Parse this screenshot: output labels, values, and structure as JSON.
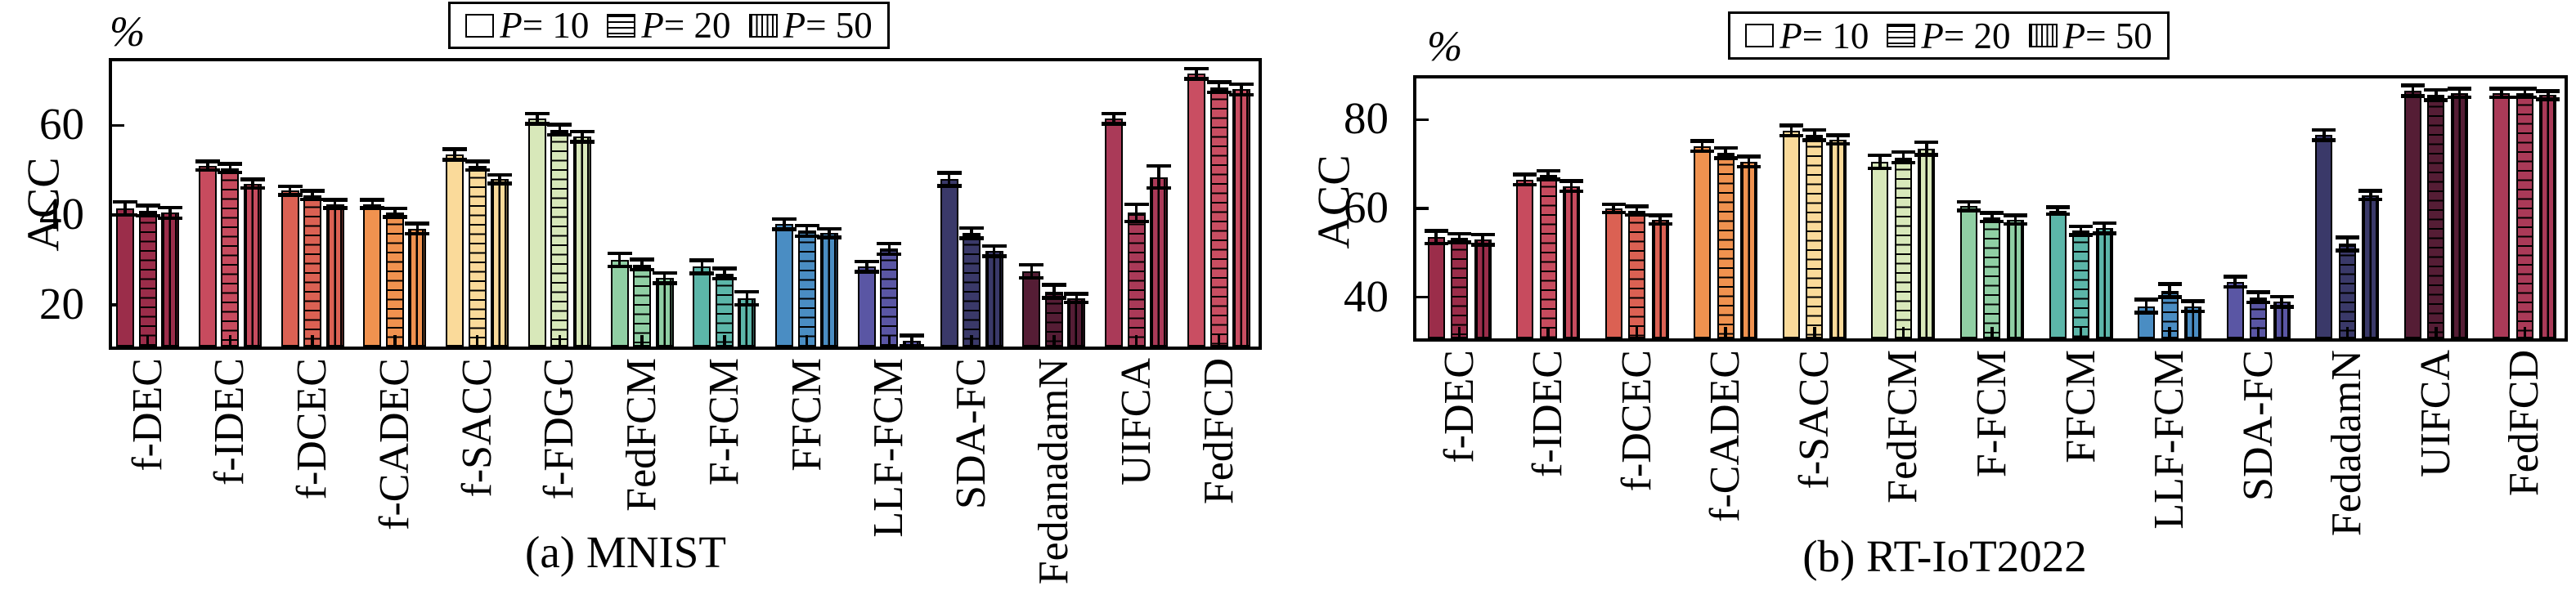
{
  "figure": {
    "background": "#ffffff",
    "axis_color": "#000000",
    "error_bar_color": "#000000"
  },
  "legend": {
    "entries": [
      {
        "var": "P",
        "rest": " = 10",
        "label": "P = 10",
        "hatch": "none"
      },
      {
        "var": "P",
        "rest": " = 20",
        "label": "P = 20",
        "hatch": "horizontal"
      },
      {
        "var": "P",
        "rest": " = 50",
        "label": "P = 50",
        "hatch": "vertical"
      }
    ]
  },
  "chart_data": [
    {
      "type": "bar",
      "title": "(a) MNIST",
      "ylabel": "ACC",
      "unit_label": "%",
      "xlabel": "",
      "ylim": [
        10,
        75
      ],
      "yticks": [
        20,
        40,
        60
      ],
      "grid": false,
      "legend_position": "top",
      "legend_entries": [
        "P = 10",
        "P = 20",
        "P = 50"
      ],
      "categories": [
        "f-DEC",
        "f-IDEC",
        "f-DCEC",
        "f-CADEC",
        "f-SACC",
        "f-FDGC",
        "FedFCM",
        "F-FCM",
        "FFCM",
        "LLF-FCM",
        "SDA-FC",
        "FedanadamN",
        "UIFCA",
        "FedFCD"
      ],
      "bar_colors": [
        "#9B2D4A",
        "#C74B5E",
        "#DB6153",
        "#F0924F",
        "#FADA9A",
        "#D8E8BA",
        "#90CFA4",
        "#5CB6A9",
        "#4A8DC3",
        "#5A56A4",
        "#3A3969",
        "#551D35",
        "#AA3A58",
        "#C94E62"
      ],
      "series": [
        {
          "name": "P = 10",
          "hatch": "none",
          "values": [
            41.5,
            51,
            45.5,
            42.5,
            53.5,
            61.5,
            30,
            28.5,
            38,
            28.5,
            48,
            27.5,
            61.5,
            71.5
          ],
          "errors": [
            1.5,
            1,
            1,
            1,
            1.2,
            1.2,
            1.5,
            1.5,
            1.2,
            1.2,
            1.5,
            1.5,
            1.2,
            1.2
          ]
        },
        {
          "name": "P = 20",
          "hatch": "horizontal",
          "values": [
            41,
            50.5,
            44.5,
            40.5,
            51,
            59,
            29,
            27,
            36.5,
            32.5,
            36,
            23,
            40.5,
            68.5
          ],
          "errors": [
            1.2,
            1,
            1,
            1,
            1,
            1.2,
            1.2,
            1.2,
            1.2,
            1.2,
            1.2,
            1.5,
            2,
            1.2
          ]
        },
        {
          "name": "P = 50",
          "hatch": "vertical",
          "values": [
            40.5,
            47,
            42.5,
            37,
            48,
            57.5,
            26,
            21.5,
            36,
            12,
            32,
            21.5,
            48.5,
            68
          ],
          "errors": [
            1.2,
            1,
            1,
            1.2,
            1,
            1.2,
            1.2,
            1.5,
            1,
            1.2,
            1.2,
            1,
            2.5,
            1.2
          ]
        }
      ]
    },
    {
      "type": "bar",
      "title": "(b) RT-IoT2022",
      "ylabel": "ACC",
      "unit_label": "%",
      "xlabel": "",
      "ylim": [
        30,
        90
      ],
      "yticks": [
        40,
        60,
        80
      ],
      "grid": false,
      "legend_position": "top",
      "legend_entries": [
        "P = 10",
        "P = 20",
        "P = 50"
      ],
      "categories": [
        "f-DEC",
        "f-IDEC",
        "f-DCEC",
        "f-CADEC",
        "f-SACC",
        "FedFCM",
        "F-FCM",
        "FFCM",
        "LLF-FCM",
        "SDA-FC",
        "FedadamN",
        "UIFCA",
        "FedFCD"
      ],
      "bar_colors": [
        "#9B2D4A",
        "#C74B5E",
        "#DB6153",
        "#F0924F",
        "#FADA9A",
        "#D8E8BA",
        "#90CFA4",
        "#5CB6A9",
        "#4A8DC3",
        "#5A56A4",
        "#3A3969",
        "#551D35",
        "#AA3A58"
      ],
      "series": [
        {
          "name": "P = 10",
          "hatch": "none",
          "values": [
            53.5,
            66.5,
            60,
            74,
            77.5,
            70.5,
            60.5,
            59.5,
            38,
            43.5,
            76.5,
            86.5,
            86
          ],
          "errors": [
            1.5,
            1.2,
            1,
            1.2,
            1.2,
            1.5,
            1,
            0.8,
            1.5,
            1.2,
            1.2,
            1.2,
            1
          ]
        },
        {
          "name": "P = 20",
          "hatch": "horizontal",
          "values": [
            53.3,
            67.5,
            59.5,
            72.5,
            76.5,
            71.5,
            58,
            55,
            41.5,
            40,
            52,
            85.5,
            86
          ],
          "errors": [
            1,
            1,
            1,
            1.2,
            1.2,
            1.2,
            1,
            1,
            1.5,
            1.2,
            1.5,
            1.2,
            1
          ]
        },
        {
          "name": "P = 50",
          "hatch": "vertical",
          "values": [
            53,
            65,
            57.5,
            70.5,
            75.5,
            73.5,
            57.5,
            55.5,
            38,
            39,
            63,
            86,
            85.5
          ],
          "errors": [
            1.2,
            1.2,
            1,
            1.2,
            1,
            1.5,
            1,
            1.2,
            1.2,
            1.2,
            1,
            1,
            1
          ]
        }
      ]
    }
  ]
}
